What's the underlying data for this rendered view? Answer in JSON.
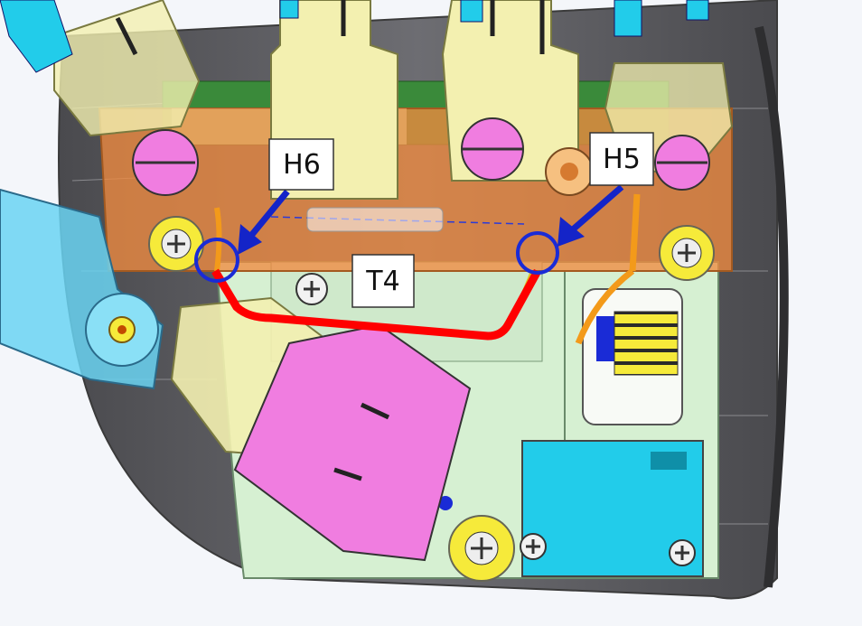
{
  "labels": {
    "h6": "H6",
    "h5": "H5",
    "t4": "T4"
  },
  "colors": {
    "wire_red": "#ff0000",
    "circle_blue": "#1a2bd6",
    "arrow_blue": "#1424c8",
    "plate_green": "#d6f0d2",
    "bracket_orange": "#f08a40",
    "knob_pink": "#f07de0",
    "body_yellow": "#f3f0b0",
    "block_cyan": "#22ccea",
    "housing_gray": "#5a5a5e"
  }
}
